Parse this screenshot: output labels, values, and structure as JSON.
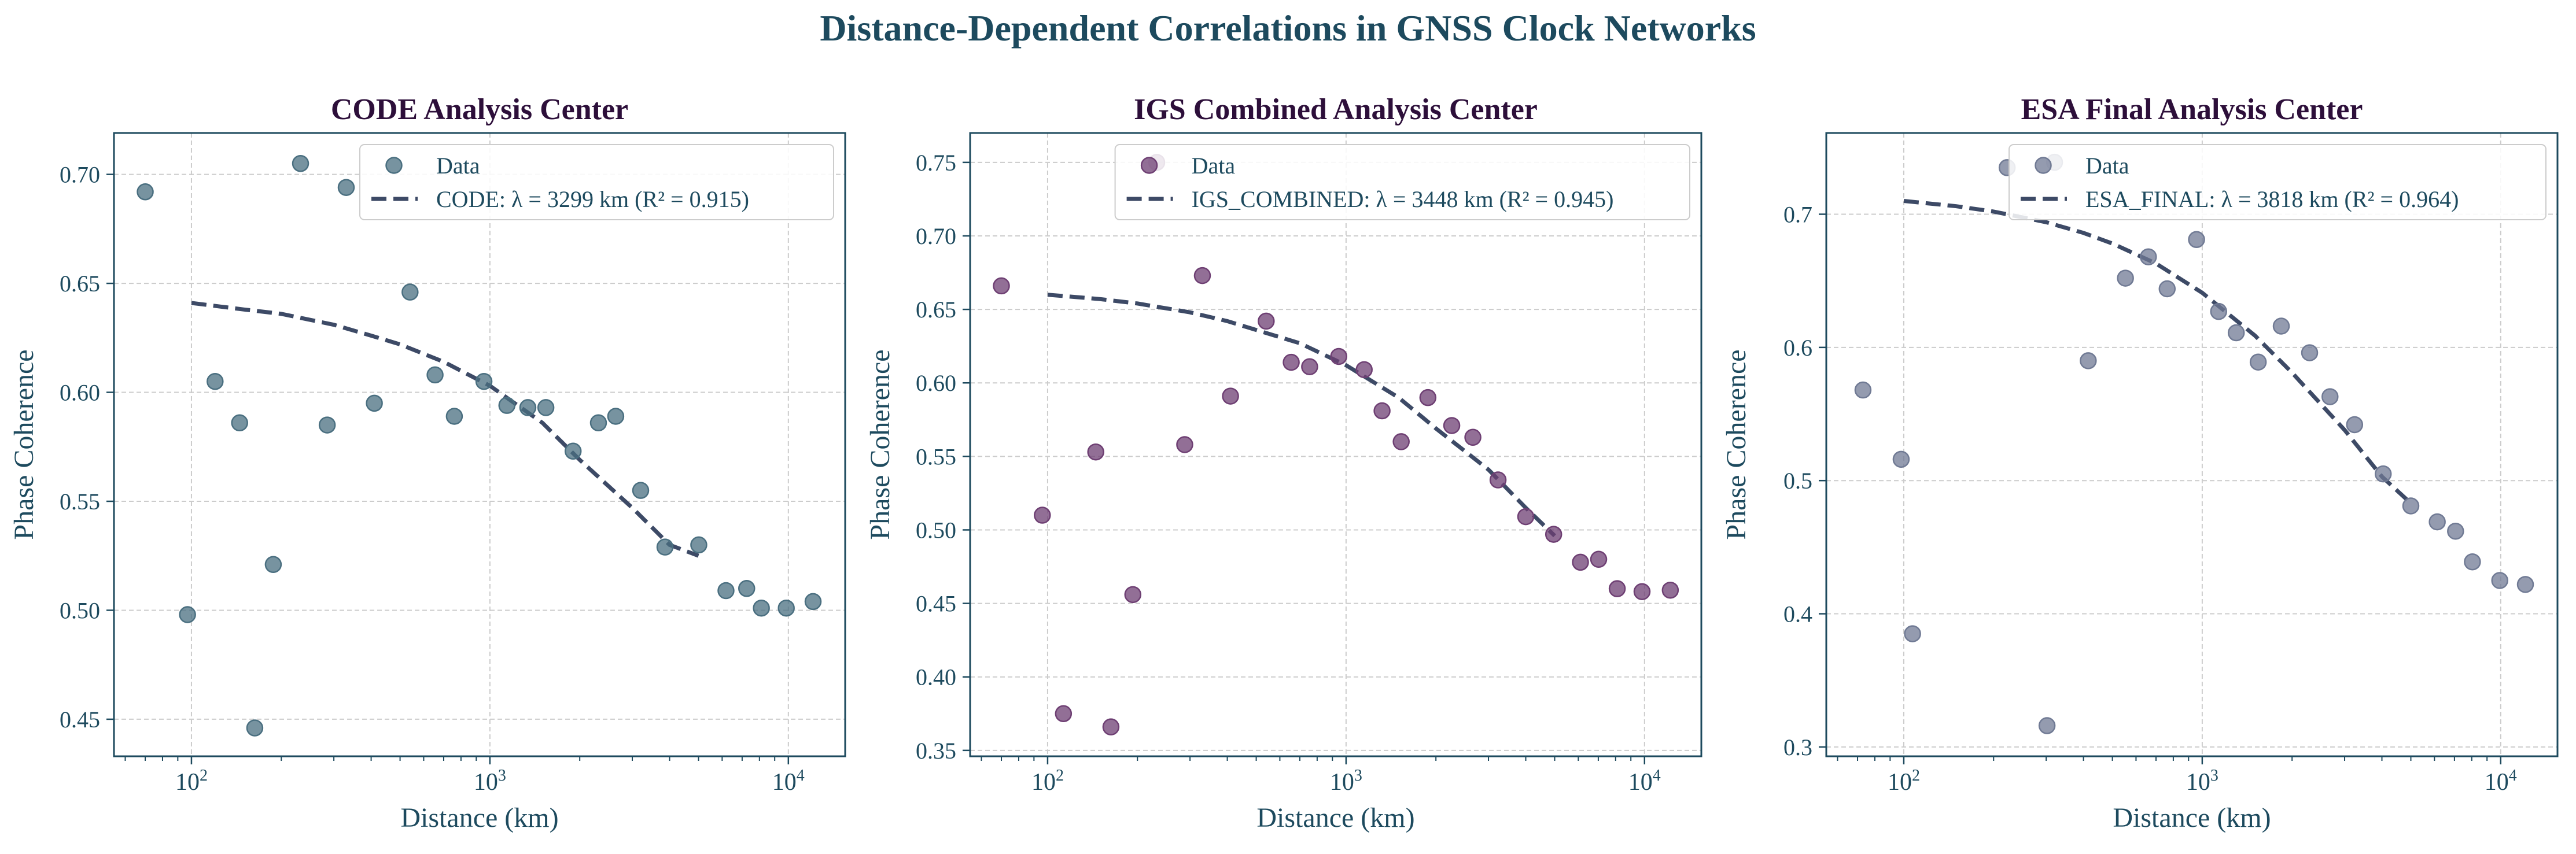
{
  "figure": {
    "title": "Distance-Dependent Correlations in GNSS Clock Networks"
  },
  "colors": {
    "title": "#1d4a5e",
    "subtitle": "#2d0f3a",
    "axis_text": "#1d4a5e",
    "axes_edge": "#1d4a5e",
    "grid": "#cccccc",
    "fit_line": "#3d4a66"
  },
  "chart_data": [
    {
      "type": "scatter",
      "title": "CODE Analysis Center",
      "xlabel": "Distance (km)",
      "ylabel": "Phase Coherence",
      "xscale": "log",
      "xlim": [
        55,
        15500
      ],
      "ylim": [
        0.433,
        0.719
      ],
      "yticks": [
        0.45,
        0.5,
        0.55,
        0.6,
        0.65,
        0.7
      ],
      "ytick_labels": [
        "0.45",
        "0.50",
        "0.55",
        "0.60",
        "0.65",
        "0.70"
      ],
      "xticks": [
        100,
        1000,
        10000
      ],
      "xtick_labels": [
        {
          "base": "10",
          "exp": "2"
        },
        {
          "base": "10",
          "exp": "3"
        },
        {
          "base": "10",
          "exp": "4"
        }
      ],
      "grid": true,
      "legend_position": "upper right",
      "series": [
        {
          "name": "Data",
          "kind": "scatter",
          "color": "#4a6f80",
          "x": [
            70,
            97,
            120,
            145,
            163,
            188,
            232,
            285,
            330,
            410,
            540,
            655,
            760,
            955,
            1140,
            1340,
            1540,
            1900,
            2310,
            2640,
            3200,
            3860,
            5010,
            6180,
            7250,
            8120,
            9840,
            12100
          ],
          "y": [
            0.692,
            0.498,
            0.605,
            0.586,
            0.446,
            0.521,
            0.705,
            0.585,
            0.694,
            0.595,
            0.646,
            0.608,
            0.589,
            0.605,
            0.594,
            0.593,
            0.593,
            0.573,
            0.586,
            0.589,
            0.555,
            0.529,
            0.53,
            0.509,
            0.51,
            0.501,
            0.501,
            0.504
          ]
        },
        {
          "name": "CODE: λ = 3299 km (R² = 0.915)",
          "kind": "fit",
          "color": "#3d4a66",
          "x": [
            100,
            150,
            200,
            300,
            400,
            500,
            700,
            1000,
            1500,
            2000,
            3000,
            4000,
            5000
          ],
          "y": [
            0.641,
            0.638,
            0.636,
            0.631,
            0.626,
            0.622,
            0.614,
            0.603,
            0.586,
            0.569,
            0.547,
            0.53,
            0.525
          ]
        }
      ]
    },
    {
      "type": "scatter",
      "title": "IGS Combined Analysis Center",
      "xlabel": "Distance (km)",
      "ylabel": "Phase Coherence",
      "xscale": "log",
      "xlim": [
        55,
        15500
      ],
      "ylim": [
        0.346,
        0.77
      ],
      "yticks": [
        0.35,
        0.4,
        0.45,
        0.5,
        0.55,
        0.6,
        0.65,
        0.7,
        0.75
      ],
      "ytick_labels": [
        "0.35",
        "0.40",
        "0.45",
        "0.50",
        "0.55",
        "0.60",
        "0.65",
        "0.70",
        "0.75"
      ],
      "xticks": [
        100,
        1000,
        10000
      ],
      "xtick_labels": [
        {
          "base": "10",
          "exp": "2"
        },
        {
          "base": "10",
          "exp": "3"
        },
        {
          "base": "10",
          "exp": "4"
        }
      ],
      "grid": true,
      "legend_position": "upper right",
      "series": [
        {
          "name": "Data",
          "kind": "scatter",
          "color": "#6e3f73",
          "x": [
            70,
            96,
            113,
            145,
            163,
            193,
            232,
            288,
            330,
            410,
            540,
            655,
            755,
            945,
            1150,
            1320,
            1530,
            1880,
            2260,
            2660,
            3230,
            4000,
            4960,
            6100,
            7020,
            8100,
            9810,
            12200
          ],
          "y": [
            0.666,
            0.51,
            0.375,
            0.553,
            0.366,
            0.456,
            0.75,
            0.558,
            0.673,
            0.591,
            0.642,
            0.614,
            0.611,
            0.618,
            0.609,
            0.581,
            0.56,
            0.59,
            0.571,
            0.563,
            0.534,
            0.509,
            0.497,
            0.478,
            0.48,
            0.46,
            0.458,
            0.459
          ]
        },
        {
          "name": "IGS_COMBINED: λ = 3448 km (R² = 0.945)",
          "kind": "fit",
          "color": "#3d4a66",
          "x": [
            100,
            150,
            200,
            300,
            400,
            500,
            700,
            1000,
            1500,
            2000,
            3000,
            4000,
            5000
          ],
          "y": [
            0.66,
            0.657,
            0.654,
            0.648,
            0.642,
            0.636,
            0.627,
            0.612,
            0.59,
            0.569,
            0.541,
            0.515,
            0.496
          ]
        }
      ]
    },
    {
      "type": "scatter",
      "title": "ESA Final Analysis Center",
      "xlabel": "Distance (km)",
      "ylabel": "Phase Coherence",
      "xscale": "log",
      "xlim": [
        55,
        15500
      ],
      "ylim": [
        0.293,
        0.761
      ],
      "yticks": [
        0.3,
        0.4,
        0.5,
        0.6,
        0.7
      ],
      "ytick_labels": [
        "0.3",
        "0.4",
        "0.5",
        "0.6",
        "0.7"
      ],
      "xticks": [
        100,
        1000,
        10000
      ],
      "xtick_labels": [
        {
          "base": "10",
          "exp": "2"
        },
        {
          "base": "10",
          "exp": "3"
        },
        {
          "base": "10",
          "exp": "4"
        }
      ],
      "grid": true,
      "legend_position": "upper right",
      "series": [
        {
          "name": "Data",
          "kind": "scatter",
          "color": "#707a94",
          "x": [
            73,
            98,
            107,
            222,
            302,
            320,
            415,
            553,
            660,
            763,
            957,
            1135,
            1300,
            1540,
            1840,
            2290,
            2680,
            3240,
            4040,
            5000,
            6130,
            7060,
            8040,
            9930,
            12100
          ],
          "y": [
            0.568,
            0.516,
            0.385,
            0.735,
            0.316,
            0.739,
            0.59,
            0.652,
            0.668,
            0.644,
            0.681,
            0.627,
            0.611,
            0.589,
            0.616,
            0.596,
            0.563,
            0.542,
            0.505,
            0.481,
            0.469,
            0.462,
            0.439,
            0.425,
            0.422
          ]
        },
        {
          "name": "ESA_FINAL: λ = 3818 km (R² = 0.964)",
          "kind": "fit",
          "color": "#3d4a66",
          "x": [
            100,
            150,
            200,
            300,
            400,
            500,
            700,
            1000,
            1500,
            2000,
            3000,
            4000,
            5000
          ],
          "y": [
            0.71,
            0.706,
            0.702,
            0.694,
            0.686,
            0.678,
            0.663,
            0.641,
            0.609,
            0.581,
            0.538,
            0.503,
            0.483
          ]
        }
      ]
    }
  ]
}
